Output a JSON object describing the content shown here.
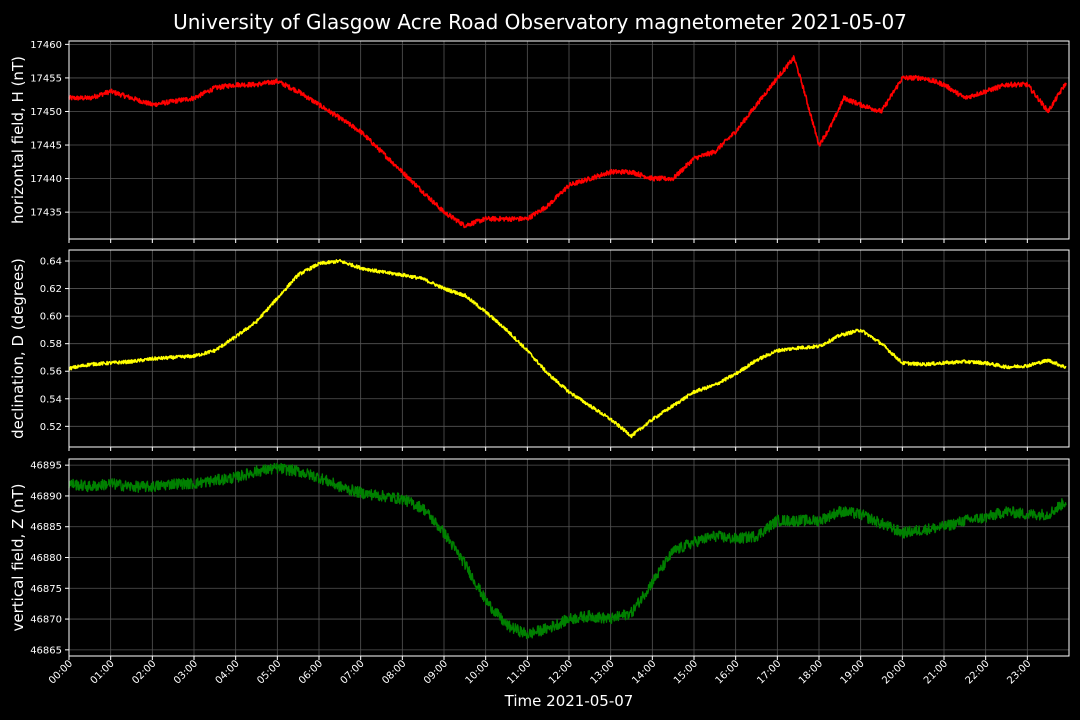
{
  "chart_data": {
    "type": "line",
    "title": "University of Glasgow Acre Road Observatory magnetometer 2021-05-07",
    "xlabel": "Time 2021-05-07",
    "x_ticks": [
      "00:00",
      "01:00",
      "02:00",
      "03:00",
      "04:00",
      "05:00",
      "06:00",
      "07:00",
      "08:00",
      "09:00",
      "10:00",
      "11:00",
      "12:00",
      "13:00",
      "14:00",
      "15:00",
      "16:00",
      "17:00",
      "18:00",
      "19:00",
      "20:00",
      "21:00",
      "22:00",
      "23:00"
    ],
    "xlim_hours": [
      0,
      24
    ],
    "grid": true,
    "panels": [
      {
        "ylabel": "horizontal field, H (nT)",
        "color": "#ff0000",
        "ylim": [
          17431,
          17460.5
        ],
        "y_ticks": [
          "17435",
          "17440",
          "17445",
          "17450",
          "17455",
          "17460"
        ],
        "noise": 0.35,
        "hours": [
          0,
          0.5,
          1,
          1.5,
          2,
          2.5,
          3,
          3.5,
          4,
          4.5,
          5,
          5.5,
          6,
          6.5,
          7,
          7.5,
          8,
          8.5,
          9,
          9.5,
          10,
          10.5,
          11,
          11.5,
          12,
          12.5,
          13,
          13.5,
          14,
          14.5,
          15,
          15.5,
          16,
          16.5,
          17,
          17.4,
          17.6,
          18,
          18.3,
          18.6,
          19,
          19.5,
          20,
          20.5,
          21,
          21.5,
          22,
          22.5,
          23,
          23.5,
          23.9
        ],
        "values": [
          17452,
          17452,
          17453,
          17452,
          17451,
          17451.5,
          17452,
          17453.5,
          17454,
          17454,
          17454.5,
          17453,
          17451,
          17449,
          17447,
          17444,
          17441,
          17438,
          17435,
          17433,
          17434,
          17434,
          17434,
          17436,
          17439,
          17440,
          17441,
          17441,
          17440,
          17440,
          17443,
          17444,
          17447,
          17451,
          17455,
          17458,
          17454,
          17445,
          17448,
          17452,
          17451,
          17450,
          17455,
          17455,
          17454,
          17452,
          17453,
          17454,
          17454,
          17450,
          17454
        ]
      },
      {
        "ylabel": "declination, D (degrees)",
        "color": "#ffff00",
        "ylim": [
          0.505,
          0.648
        ],
        "y_ticks": [
          "0.52",
          "0.54",
          "0.56",
          "0.58",
          "0.60",
          "0.62",
          "0.64"
        ],
        "noise": 0.0012,
        "hours": [
          0,
          0.5,
          1,
          1.5,
          2,
          2.5,
          3,
          3.5,
          4,
          4.5,
          5,
          5.5,
          6,
          6.5,
          7,
          7.5,
          8,
          8.5,
          9,
          9.5,
          10,
          10.5,
          11,
          11.5,
          12,
          12.5,
          13,
          13.5,
          14,
          14.5,
          15,
          15.5,
          16,
          16.5,
          17,
          17.5,
          18,
          18.5,
          19,
          19.5,
          20,
          20.5,
          21,
          21.5,
          22,
          22.5,
          23,
          23.5,
          23.9
        ],
        "values": [
          0.562,
          0.565,
          0.566,
          0.567,
          0.569,
          0.57,
          0.571,
          0.575,
          0.585,
          0.596,
          0.613,
          0.63,
          0.638,
          0.64,
          0.635,
          0.632,
          0.63,
          0.627,
          0.62,
          0.615,
          0.603,
          0.59,
          0.575,
          0.558,
          0.545,
          0.535,
          0.525,
          0.513,
          0.525,
          0.535,
          0.545,
          0.55,
          0.558,
          0.568,
          0.575,
          0.577,
          0.578,
          0.586,
          0.59,
          0.58,
          0.566,
          0.565,
          0.566,
          0.567,
          0.566,
          0.563,
          0.564,
          0.568,
          0.563
        ]
      },
      {
        "ylabel": "vertical field, Z (nT)",
        "color": "#008000",
        "ylim": [
          46864,
          46896
        ],
        "y_ticks": [
          "46865",
          "46870",
          "46875",
          "46880",
          "46885",
          "46890",
          "46895"
        ],
        "noise": 0.9,
        "hours": [
          0,
          0.5,
          1,
          1.5,
          2,
          2.5,
          3,
          3.5,
          4,
          4.5,
          5,
          5.5,
          6,
          6.5,
          7,
          7.5,
          8,
          8.5,
          9,
          9.5,
          10,
          10.5,
          11,
          11.5,
          12,
          12.5,
          13,
          13.5,
          14,
          14.5,
          15,
          15.5,
          16,
          16.5,
          17,
          17.5,
          18,
          18.5,
          19,
          19.5,
          20,
          20.5,
          21,
          21.5,
          22,
          22.5,
          23,
          23.5,
          23.9
        ],
        "values": [
          46892,
          46891.5,
          46892,
          46891.5,
          46891.5,
          46892,
          46892,
          46892.5,
          46893,
          46894,
          46894.5,
          46894,
          46893,
          46891.5,
          46890.5,
          46890,
          46889.5,
          46888,
          46884,
          46879,
          46873,
          46869,
          46867.5,
          46868.5,
          46870,
          46870.5,
          46870,
          46871,
          46876,
          46881,
          46882.5,
          46883.5,
          46883,
          46883.5,
          46886,
          46886,
          46886,
          46887.5,
          46887,
          46885.5,
          46884,
          46884.5,
          46885,
          46886,
          46886.5,
          46887.5,
          46887,
          46887,
          46889
        ]
      }
    ]
  }
}
